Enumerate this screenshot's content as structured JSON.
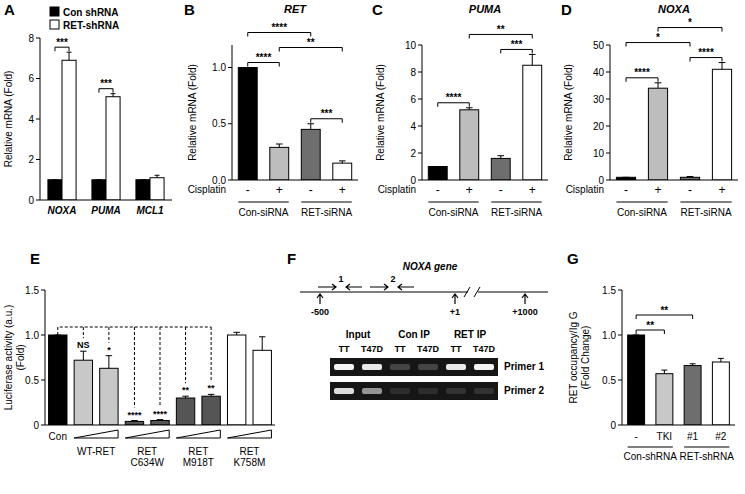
{
  "chart_data": [
    {
      "panel": "A",
      "type": "bar",
      "y_label": "Relative mRNA (Fold)",
      "categories": [
        "NOXA",
        "PUMA",
        "MCL1"
      ],
      "series": [
        {
          "name": "Con shRNA",
          "color": "#000000",
          "values": [
            1,
            1,
            1
          ],
          "errors": [
            0,
            0,
            0
          ]
        },
        {
          "name": "RET-shRNA",
          "color": "#ffffff",
          "values": [
            6.9,
            5.1,
            1.1
          ],
          "errors": [
            0.4,
            0.15,
            0.12
          ]
        }
      ],
      "ylim": [
        0,
        8
      ],
      "yticks": [
        0,
        2,
        4,
        6,
        8
      ],
      "legend": "upper left",
      "annotations": [
        {
          "text": "***",
          "category": 0
        },
        {
          "text": "***",
          "category": 1
        }
      ]
    },
    {
      "panel": "B",
      "type": "bar",
      "title": "RET",
      "y_label": "Relative mRNA (Fold)",
      "row_label": "Cisplatin",
      "categories": [
        "-",
        "+",
        "-",
        "+"
      ],
      "groups": [
        {
          "label": "Con-siRNA",
          "span": [
            0,
            1
          ]
        },
        {
          "label": "RET-siRNA",
          "span": [
            2,
            3
          ]
        }
      ],
      "series": [
        {
          "colors": [
            "#000000",
            "#bdbdbd",
            "#6e6e6e",
            "#ffffff"
          ],
          "values": [
            1,
            0.29,
            0.45,
            0.15
          ],
          "errors": [
            0,
            0.03,
            0.05,
            0.02
          ]
        }
      ],
      "ylim": [
        0,
        1.2
      ],
      "yticks": [
        {
          "value": 0,
          "label": "0.0"
        },
        0.5,
        {
          "value": 1,
          "label": "1.0"
        }
      ],
      "annotations": [
        {
          "text": "****",
          "between": [
            0,
            1
          ]
        },
        {
          "text": "***",
          "between": [
            2,
            3
          ]
        },
        {
          "text": "**",
          "between": [
            1,
            3
          ]
        },
        {
          "text": "****",
          "between": [
            0,
            2
          ]
        }
      ]
    },
    {
      "panel": "C",
      "type": "bar",
      "title": "PUMA",
      "y_label": "Relative mRNA (Fold)",
      "row_label": "Cisplatin",
      "categories": [
        "-",
        "+",
        "-",
        "+"
      ],
      "groups": [
        {
          "label": "Con-siRNA",
          "span": [
            0,
            1
          ]
        },
        {
          "label": "RET-siRNA",
          "span": [
            2,
            3
          ]
        }
      ],
      "series": [
        {
          "colors": [
            "#000000",
            "#bdbdbd",
            "#6e6e6e",
            "#ffffff"
          ],
          "values": [
            1,
            5.2,
            1.6,
            8.5
          ],
          "errors": [
            0,
            0.15,
            0.2,
            0.8
          ]
        }
      ],
      "ylim": [
        0,
        10
      ],
      "yticks": [
        0,
        2,
        4,
        6,
        8,
        10
      ],
      "annotations": [
        {
          "text": "****",
          "between": [
            0,
            1
          ]
        },
        {
          "text": "***",
          "between": [
            2,
            3
          ]
        },
        {
          "text": "**",
          "between": [
            1,
            3
          ]
        }
      ]
    },
    {
      "panel": "D",
      "type": "bar",
      "title": "NOXA",
      "y_label": "Relative mRNA (Fold)",
      "row_label": "Cisplatin",
      "categories": [
        "-",
        "+",
        "-",
        "+"
      ],
      "groups": [
        {
          "label": "Con-siRNA",
          "span": [
            0,
            1
          ]
        },
        {
          "label": "RET-siRNA",
          "span": [
            2,
            3
          ]
        }
      ],
      "series": [
        {
          "colors": [
            "#000000",
            "#bdbdbd",
            "#6e6e6e",
            "#ffffff"
          ],
          "values": [
            1,
            34,
            1,
            41
          ],
          "errors": [
            0,
            2,
            0.3,
            2.5
          ]
        }
      ],
      "ylim": [
        0,
        50
      ],
      "yticks": [
        0,
        10,
        20,
        30,
        40,
        50
      ],
      "annotations": [
        {
          "text": "****",
          "between": [
            0,
            1
          ]
        },
        {
          "text": "****",
          "between": [
            2,
            3
          ]
        },
        {
          "text": "*",
          "between": [
            0,
            2
          ]
        },
        {
          "text": "*",
          "between": [
            1,
            3
          ]
        }
      ]
    },
    {
      "panel": "E",
      "type": "bar",
      "y_label": [
        "Luciferase activity (a.u.)",
        "(Fold)"
      ],
      "categories": [
        "Con",
        null,
        null,
        null,
        null,
        null,
        null,
        null,
        null
      ],
      "groups": [
        {
          "label": "WT-RET",
          "span": [
            1,
            2
          ]
        },
        {
          "label": "RET C634W",
          "span": [
            3,
            4
          ]
        },
        {
          "label": "RET M918T",
          "span": [
            5,
            6
          ]
        },
        {
          "label": "RET K758M",
          "span": [
            7,
            8
          ]
        }
      ],
      "series": [
        {
          "colors": [
            "#000000",
            "#c8c8c8",
            "#c8c8c8",
            "#555555",
            "#555555",
            "#555555",
            "#555555",
            "#ffffff",
            "#ffffff"
          ],
          "values": [
            1,
            0.72,
            0.63,
            0.04,
            0.05,
            0.3,
            0.32,
            1,
            0.83
          ],
          "errors": [
            0,
            0.1,
            0.14,
            0.01,
            0.01,
            0.02,
            0.02,
            0.03,
            0.15
          ]
        }
      ],
      "ylim": [
        0,
        1.5
      ],
      "yticks": [
        0,
        0.5,
        {
          "value": 1,
          "label": "1.0"
        },
        1.5
      ],
      "annotations": [
        {
          "text": "NS",
          "between": [
            0,
            1
          ]
        },
        {
          "text": "*",
          "between": [
            0,
            2
          ]
        },
        {
          "text": "****",
          "between": [
            0,
            3
          ]
        },
        {
          "text": "****",
          "between": [
            0,
            4
          ]
        },
        {
          "text": "**",
          "between": [
            0,
            5
          ]
        },
        {
          "text": "**",
          "between": [
            0,
            6
          ]
        }
      ]
    },
    {
      "panel": "G",
      "type": "bar",
      "y_label": [
        "RET occupancy/Ig G",
        "(Fold Change)"
      ],
      "categories": [
        "-",
        "TKI",
        "#1",
        "#2"
      ],
      "groups": [
        {
          "label": "Con-shRNA",
          "span": [
            0,
            1
          ]
        },
        {
          "label": "RET-shRNA",
          "span": [
            2,
            3
          ]
        }
      ],
      "series": [
        {
          "colors": [
            "#000000",
            "#c8c8c8",
            "#6e6e6e",
            "#ffffff"
          ],
          "values": [
            1,
            0.57,
            0.66,
            0.7
          ],
          "errors": [
            0,
            0.04,
            0.02,
            0.04
          ]
        }
      ],
      "ylim": [
        0,
        1.5
      ],
      "yticks": [
        0,
        0.5,
        {
          "value": 1,
          "label": "1.0"
        },
        1.5
      ],
      "annotations": [
        {
          "text": "**",
          "between": [
            0,
            1
          ]
        },
        {
          "text": "**",
          "between": [
            0,
            2
          ]
        }
      ]
    }
  ],
  "diagram": {
    "panel": "F",
    "title": "NOXA gene",
    "primers": [
      "1",
      "2"
    ],
    "positions": [
      "-500",
      "+1",
      "+1000"
    ],
    "columns": [
      "Input",
      "Con IP",
      "RET IP"
    ],
    "lanes": [
      "TT",
      "T47D"
    ],
    "rows": [
      {
        "label": "Primer 1",
        "bands": [
          0.95,
          0.9,
          0.2,
          0.2,
          0.9,
          0.95
        ]
      },
      {
        "label": "Primer 2",
        "bands": [
          0.85,
          0.55,
          0.1,
          0.1,
          0.12,
          0.12
        ]
      }
    ]
  }
}
